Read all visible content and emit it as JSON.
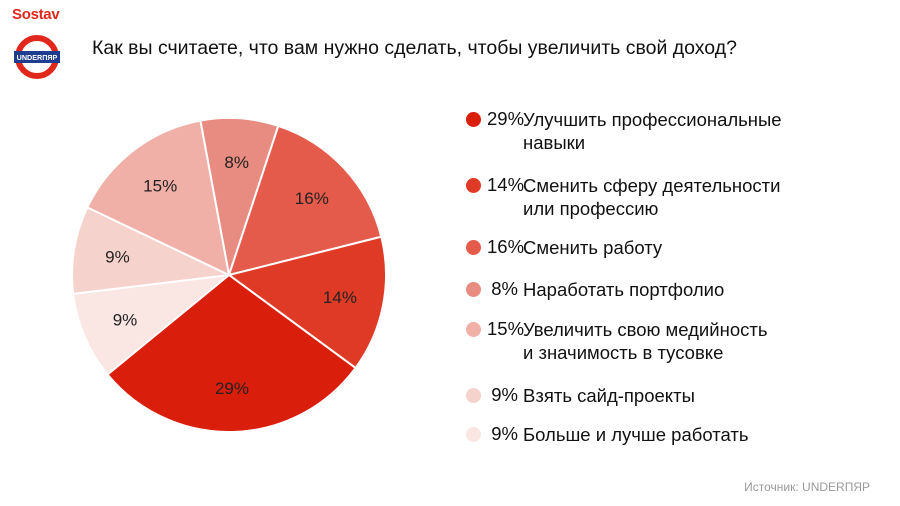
{
  "header": {
    "brand": "Sostav",
    "logo_text": "UNDERПЯР",
    "title": "Как вы считаете, что вам нужно сделать, чтобы увеличить свой доход?"
  },
  "source": "Источник: UNDERПЯР",
  "chart_data": {
    "type": "pie",
    "title": "Как вы считаете, что вам нужно сделать, чтобы увеличить свой доход?",
    "unit": "%",
    "legend_position": "right",
    "slices": [
      {
        "label": "Улучшить профессиональные навыки",
        "value": 29,
        "display": "29%",
        "color": "#d91e0b"
      },
      {
        "label": "Сменить сферу деятельности или профессию",
        "value": 14,
        "display": "14%",
        "color": "#df3a26"
      },
      {
        "label": "Сменить работу",
        "value": 16,
        "display": "16%",
        "color": "#e45a4b"
      },
      {
        "label": "Наработать портфолио",
        "value": 8,
        "display": "8%",
        "color": "#e88b80"
      },
      {
        "label": "Увеличить свою медийность и значимость в тусовке",
        "value": 15,
        "display": "15%",
        "color": "#f0b0a7"
      },
      {
        "label": "Взять сайд-проекты",
        "value": 9,
        "display": "9%",
        "color": "#f6d2cd"
      },
      {
        "label": "Больше и лучше работать",
        "value": 9,
        "display": "9%",
        "color": "#fae6e3"
      }
    ],
    "legend": [
      {
        "pct": "29%",
        "lines": [
          "Улучшить профессиональные",
          "навыки"
        ]
      },
      {
        "pct": "14%",
        "lines": [
          "Сменить сферу деятельности",
          "или профессию"
        ]
      },
      {
        "pct": "16%",
        "lines": [
          "Сменить работу"
        ]
      },
      {
        "pct": "8%",
        "lines": [
          "Наработать портфолио"
        ]
      },
      {
        "pct": "15%",
        "lines": [
          "Увеличить свою медийность",
          "и значимость в тусовке"
        ]
      },
      {
        "pct": "9%",
        "lines": [
          "Взять сайд-проекты"
        ]
      },
      {
        "pct": "9%",
        "lines": [
          "Больше и лучше работать"
        ]
      }
    ]
  }
}
